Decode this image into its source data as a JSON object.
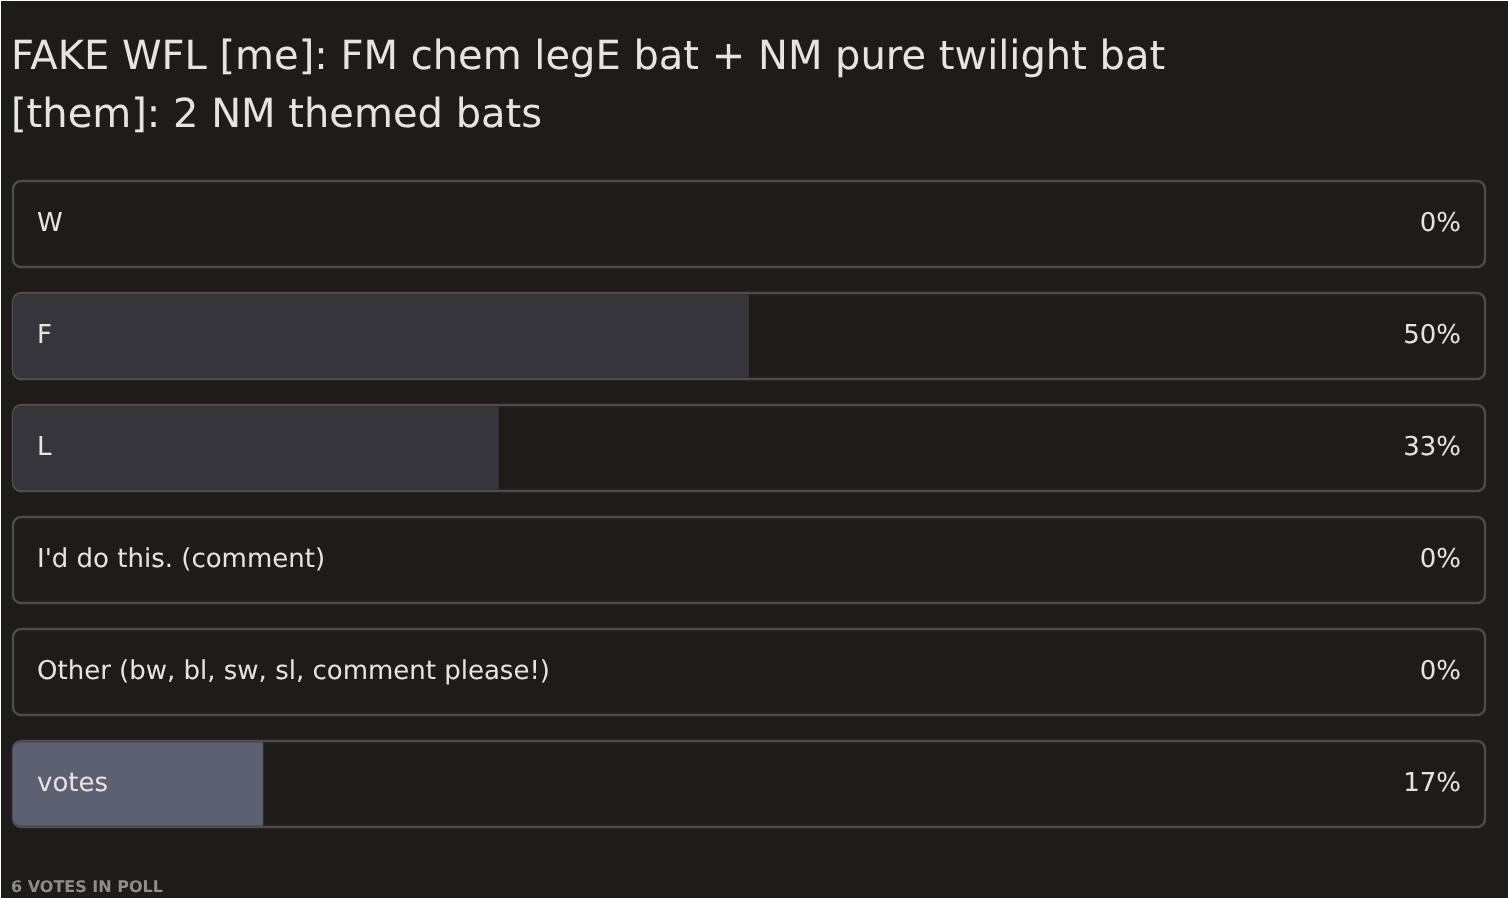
{
  "chart_data": {
    "type": "bar",
    "orientation": "horizontal",
    "title": "FAKE WFL [me]: FM chem legE bat + NM pure twilight bat [them]: 2 NM themed bats",
    "categories": [
      "W",
      "F",
      "L",
      "I'd do this. (comment)",
      "Other (bw, bl, sw, sl, comment please!)",
      "votes"
    ],
    "values": [
      0,
      50,
      33,
      0,
      0,
      17
    ],
    "value_labels": [
      "0%",
      "50%",
      "33%",
      "0%",
      "0%",
      "17%"
    ],
    "colors": [
      "#36353b",
      "#36353b",
      "#36353b",
      "#36353b",
      "#36353b",
      "#5d6070"
    ],
    "annotations": [
      "6 VOTES IN POLL"
    ]
  }
}
